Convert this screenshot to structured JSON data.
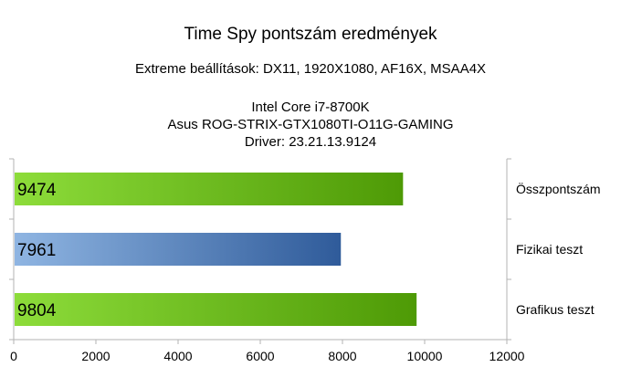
{
  "chart_data": {
    "type": "bar",
    "orientation": "horizontal",
    "title": "Time Spy pontszám eredmények",
    "subtitle": "Extreme beállítások: DX11, 1920X1080, AF16X, MSAA4X",
    "info_lines": [
      "Intel Core i7-8700K",
      "Asus ROG-STRIX-GTX1080TI-O11G-GAMING",
      "Driver: 23.21.13.9124"
    ],
    "categories": [
      "Összpontszám",
      "Fizikai teszt",
      "Grafikus teszt"
    ],
    "values": [
      9474,
      7961,
      9804
    ],
    "data_labels": [
      "9474",
      "7961",
      "9804"
    ],
    "bar_colors": [
      "green",
      "blue",
      "green"
    ],
    "colors": {
      "green_light": "#8ddc3a",
      "green_dark": "#4e9a06",
      "blue_light": "#8fb5e2",
      "blue_dark": "#2f5b9a",
      "axis": "#b3b3b3"
    },
    "xlim": [
      0,
      12000
    ],
    "xticks": [
      0,
      2000,
      4000,
      6000,
      8000,
      10000,
      12000
    ],
    "xtick_labels": [
      "0",
      "2000",
      "4000",
      "6000",
      "8000",
      "10000",
      "12000"
    ],
    "category_label_position": "right",
    "grid": false,
    "legend": "none"
  }
}
